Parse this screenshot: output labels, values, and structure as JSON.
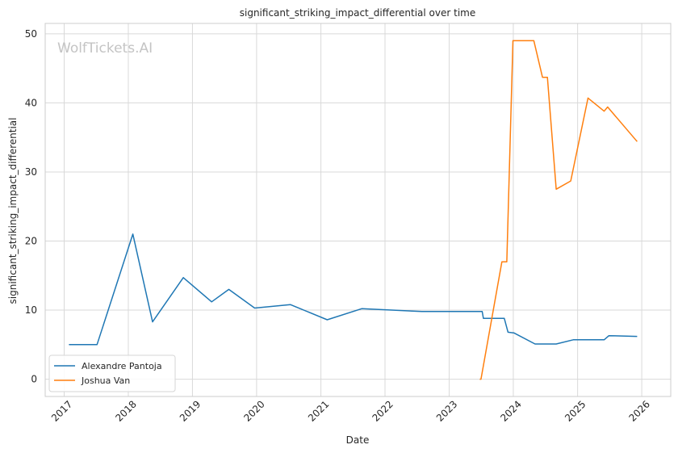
{
  "watermark": "WolfTickets.AI",
  "chart_data": {
    "type": "line",
    "title": "significant_striking_impact_differential over time",
    "xlabel": "Date",
    "ylabel": "significant_striking_impact_differential",
    "xlim": [
      "2016-09-15",
      "2026-06-15"
    ],
    "ylim": [
      -2.5,
      51.5
    ],
    "x_ticks": [
      "2017",
      "2018",
      "2019",
      "2020",
      "2021",
      "2022",
      "2023",
      "2024",
      "2025",
      "2026"
    ],
    "y_ticks": [
      0,
      10,
      20,
      30,
      40,
      50
    ],
    "grid": true,
    "legend_position": "lower-left",
    "series": [
      {
        "name": "Alexandre Pantoja",
        "color": "#1f77b4",
        "points": [
          [
            "2017-01-28",
            5.0
          ],
          [
            "2017-07-07",
            5.0
          ],
          [
            "2018-01-27",
            21.0
          ],
          [
            "2018-05-19",
            8.3
          ],
          [
            "2018-11-10",
            14.7
          ],
          [
            "2019-04-20",
            11.2
          ],
          [
            "2019-07-27",
            13.0
          ],
          [
            "2019-12-21",
            10.3
          ],
          [
            "2020-07-11",
            10.8
          ],
          [
            "2021-02-06",
            8.6
          ],
          [
            "2021-08-21",
            10.2
          ],
          [
            "2022-07-30",
            9.8
          ],
          [
            "2023-07-08",
            9.8
          ],
          [
            "2023-07-15",
            8.8
          ],
          [
            "2023-11-11",
            8.8
          ],
          [
            "2023-12-02",
            6.8
          ],
          [
            "2024-01-05",
            6.7
          ],
          [
            "2024-05-04",
            5.1
          ],
          [
            "2024-09-01",
            5.1
          ],
          [
            "2024-12-07",
            5.7
          ],
          [
            "2025-06-01",
            5.7
          ],
          [
            "2025-06-28",
            6.3
          ],
          [
            "2025-12-06",
            6.2
          ]
        ]
      },
      {
        "name": "Joshua Van",
        "color": "#ff7f0e",
        "points": [
          [
            "2023-06-24",
            0.0
          ],
          [
            "2023-07-01",
            0.0
          ],
          [
            "2023-10-28",
            17.0
          ],
          [
            "2023-11-25",
            17.0
          ],
          [
            "2023-12-30",
            49.0
          ],
          [
            "2024-04-27",
            49.0
          ],
          [
            "2024-06-15",
            43.7
          ],
          [
            "2024-07-13",
            43.7
          ],
          [
            "2024-09-01",
            27.5
          ],
          [
            "2024-11-23",
            28.7
          ],
          [
            "2025-03-01",
            40.7
          ],
          [
            "2025-06-01",
            38.8
          ],
          [
            "2025-06-21",
            39.4
          ],
          [
            "2025-12-06",
            34.4
          ]
        ]
      }
    ]
  }
}
